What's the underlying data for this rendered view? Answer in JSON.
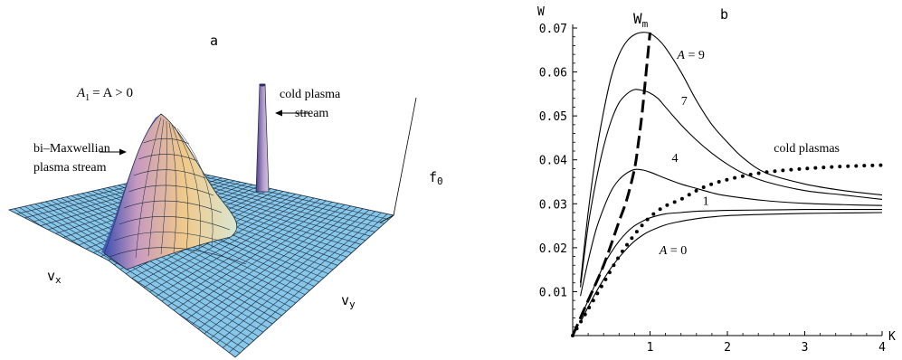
{
  "panel_a": {
    "label": "a",
    "condition": {
      "a1": "A",
      "sub1": "1",
      "eq": "= A > 0"
    },
    "annotation_bimax": [
      "bi–Maxwellian",
      "plasma stream"
    ],
    "annotation_cold": [
      "cold plasma",
      "stream"
    ],
    "axis_vx": {
      "main": "v",
      "sub": "x"
    },
    "axis_vy": {
      "main": "v",
      "sub": "y"
    },
    "axis_f0": {
      "main": "f",
      "sub": "0"
    },
    "colors": {
      "surface": "#87c7ea",
      "mesh": "#1c2a3a",
      "peak_warm": "#f0c98a",
      "peak_blue": "#3b4fb0",
      "spike": "#8a6fb5"
    }
  },
  "chart_data": {
    "type": "line",
    "label": "b",
    "xlabel": "K",
    "ylabel": "W",
    "xlim": [
      0,
      4
    ],
    "ylim": [
      0,
      0.07
    ],
    "xticks": [
      "1",
      "2",
      "3",
      "4"
    ],
    "yticks": [
      "0.01",
      "0.02",
      "0.03",
      "0.04",
      "0.05",
      "0.06",
      "0.07"
    ],
    "grid": false,
    "series": [
      {
        "name": "A = 9",
        "style": "solid",
        "x": [
          0.1,
          0.2,
          0.3,
          0.4,
          0.5,
          0.6,
          0.7,
          0.8,
          0.9,
          1.0,
          1.1,
          1.2,
          1.4,
          1.6,
          1.8,
          2.0,
          2.2,
          2.5,
          3.0,
          3.5,
          4.0
        ],
        "y": [
          0.012,
          0.028,
          0.041,
          0.051,
          0.059,
          0.064,
          0.067,
          0.0685,
          0.069,
          0.0688,
          0.0675,
          0.0655,
          0.06,
          0.0535,
          0.048,
          0.044,
          0.0405,
          0.037,
          0.0345,
          0.033,
          0.032
        ]
      },
      {
        "name": "7",
        "style": "solid",
        "x": [
          0.1,
          0.2,
          0.3,
          0.4,
          0.5,
          0.6,
          0.7,
          0.8,
          0.9,
          1.0,
          1.1,
          1.2,
          1.4,
          1.6,
          1.8,
          2.0,
          2.2,
          2.5,
          3.0,
          3.5,
          4.0
        ],
        "y": [
          0.011,
          0.025,
          0.035,
          0.043,
          0.049,
          0.053,
          0.055,
          0.056,
          0.0558,
          0.0552,
          0.054,
          0.052,
          0.048,
          0.0445,
          0.0415,
          0.039,
          0.037,
          0.035,
          0.033,
          0.032,
          0.031
        ]
      },
      {
        "name": "4",
        "style": "solid",
        "x": [
          0.1,
          0.2,
          0.3,
          0.4,
          0.5,
          0.6,
          0.7,
          0.8,
          0.9,
          1.0,
          1.2,
          1.4,
          1.6,
          1.8,
          2.0,
          2.5,
          3.0,
          3.5,
          4.0
        ],
        "y": [
          0.009,
          0.017,
          0.024,
          0.029,
          0.033,
          0.0355,
          0.037,
          0.0378,
          0.0377,
          0.0372,
          0.0358,
          0.0345,
          0.0335,
          0.0325,
          0.0318,
          0.0307,
          0.0301,
          0.0298,
          0.0296
        ]
      },
      {
        "name": "1",
        "style": "solid",
        "x": [
          0.1,
          0.2,
          0.3,
          0.4,
          0.5,
          0.6,
          0.7,
          0.8,
          0.9,
          1.0,
          1.2,
          1.4,
          1.6,
          1.8,
          2.0,
          2.5,
          3.0,
          3.5,
          4.0
        ],
        "y": [
          0.004,
          0.008,
          0.012,
          0.016,
          0.019,
          0.0215,
          0.0235,
          0.025,
          0.026,
          0.0268,
          0.0277,
          0.028,
          0.0283,
          0.0284,
          0.0285,
          0.0286,
          0.0287,
          0.0287,
          0.0287
        ]
      },
      {
        "name": "A = 0",
        "style": "solid",
        "x": [
          0.1,
          0.2,
          0.3,
          0.4,
          0.5,
          0.6,
          0.7,
          0.8,
          0.9,
          1.0,
          1.2,
          1.4,
          1.6,
          1.8,
          2.0,
          2.5,
          3.0,
          3.5,
          4.0
        ],
        "y": [
          0.003,
          0.0065,
          0.0098,
          0.0128,
          0.0155,
          0.0178,
          0.0198,
          0.0215,
          0.0228,
          0.0238,
          0.0252,
          0.026,
          0.0266,
          0.027,
          0.0273,
          0.0276,
          0.0278,
          0.0279,
          0.028
        ]
      },
      {
        "name": "cold plasmas",
        "style": "dotted",
        "x": [
          0.0,
          0.2,
          0.4,
          0.6,
          0.8,
          1.0,
          1.2,
          1.4,
          1.6,
          1.8,
          2.0,
          2.2,
          2.5,
          3.0,
          3.5,
          4.0
        ],
        "y": [
          0.0,
          0.006,
          0.012,
          0.018,
          0.023,
          0.027,
          0.0295,
          0.031,
          0.033,
          0.0345,
          0.0355,
          0.0363,
          0.0372,
          0.038,
          0.0385,
          0.0388
        ]
      },
      {
        "name": "W",
        "sub": "m",
        "style": "dashed",
        "x": [
          0.0,
          0.2,
          0.4,
          0.6,
          0.7,
          0.8,
          0.85,
          0.9,
          0.95,
          1.0
        ],
        "y": [
          0.0,
          0.008,
          0.016,
          0.026,
          0.031,
          0.038,
          0.044,
          0.051,
          0.06,
          0.069
        ]
      }
    ],
    "labels": [
      {
        "text": "A = 9",
        "x": 1.35,
        "y": 0.063
      },
      {
        "text": "7",
        "x": 1.4,
        "y": 0.0525
      },
      {
        "text": "4",
        "x": 1.28,
        "y": 0.0395
      },
      {
        "text": "1",
        "x": 1.68,
        "y": 0.0298
      },
      {
        "text": "A = 0",
        "x": 1.12,
        "y": 0.0185
      },
      {
        "text": "cold plasmas",
        "x": 2.6,
        "y": 0.0418
      }
    ]
  }
}
